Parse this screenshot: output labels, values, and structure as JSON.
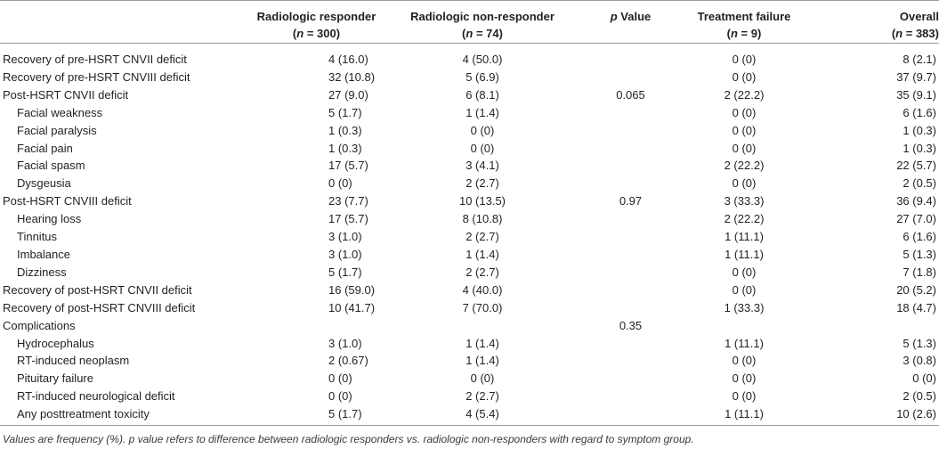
{
  "headers": {
    "col1": {
      "title": "Radiologic responder",
      "n": "300"
    },
    "col2": {
      "title": "Radiologic non-responder",
      "n": "74"
    },
    "col3": {
      "p": "p",
      "rest": " Value"
    },
    "col4": {
      "title": "Treatment failure",
      "n": "9"
    },
    "col5": {
      "title": "Overall",
      "n": "383"
    }
  },
  "rows": [
    {
      "label": "Recovery of pre-HSRT CNVII deficit",
      "indent": false,
      "c1": "4 (16.0)",
      "c2": "4 (50.0)",
      "p": "",
      "c4": "0 (0)",
      "c5": "8 (2.1)"
    },
    {
      "label": "Recovery of pre-HSRT CNVIII deficit",
      "indent": false,
      "c1": "32 (10.8)",
      "c2": "5 (6.9)",
      "p": "",
      "c4": "0 (0)",
      "c5": "37 (9.7)"
    },
    {
      "label": "Post-HSRT CNVII deficit",
      "indent": false,
      "c1": "27 (9.0)",
      "c2": "6 (8.1)",
      "p": "0.065",
      "c4": "2 (22.2)",
      "c5": "35 (9.1)"
    },
    {
      "label": "Facial weakness",
      "indent": true,
      "c1": "5 (1.7)",
      "c2": "1 (1.4)",
      "p": "",
      "c4": "0 (0)",
      "c5": "6 (1.6)"
    },
    {
      "label": "Facial paralysis",
      "indent": true,
      "c1": "1 (0.3)",
      "c2": "0 (0)",
      "p": "",
      "c4": "0 (0)",
      "c5": "1 (0.3)"
    },
    {
      "label": "Facial pain",
      "indent": true,
      "c1": "1 (0.3)",
      "c2": "0 (0)",
      "p": "",
      "c4": "0 (0)",
      "c5": "1 (0.3)"
    },
    {
      "label": "Facial spasm",
      "indent": true,
      "c1": "17 (5.7)",
      "c2": "3 (4.1)",
      "p": "",
      "c4": "2 (22.2)",
      "c5": "22 (5.7)"
    },
    {
      "label": "Dysgeusia",
      "indent": true,
      "c1": "0 (0)",
      "c2": "2 (2.7)",
      "p": "",
      "c4": "0 (0)",
      "c5": "2 (0.5)"
    },
    {
      "label": "Post-HSRT CNVIII deficit",
      "indent": false,
      "c1": "23 (7.7)",
      "c2": "10 (13.5)",
      "p": "0.97",
      "c4": "3 (33.3)",
      "c5": "36 (9.4)"
    },
    {
      "label": "Hearing loss",
      "indent": true,
      "c1": "17 (5.7)",
      "c2": "8 (10.8)",
      "p": "",
      "c4": "2 (22.2)",
      "c5": "27 (7.0)"
    },
    {
      "label": "Tinnitus",
      "indent": true,
      "c1": "3 (1.0)",
      "c2": "2 (2.7)",
      "p": "",
      "c4": "1 (11.1)",
      "c5": "6 (1.6)"
    },
    {
      "label": "Imbalance",
      "indent": true,
      "c1": "3 (1.0)",
      "c2": "1 (1.4)",
      "p": "",
      "c4": "1 (11.1)",
      "c5": "5 (1.3)"
    },
    {
      "label": "Dizziness",
      "indent": true,
      "c1": "5 (1.7)",
      "c2": "2 (2.7)",
      "p": "",
      "c4": "0 (0)",
      "c5": "7 (1.8)"
    },
    {
      "label": "Recovery of post-HSRT CNVII deficit",
      "indent": false,
      "c1": "16 (59.0)",
      "c2": "4 (40.0)",
      "p": "",
      "c4": "0 (0)",
      "c5": "20 (5.2)"
    },
    {
      "label": "Recovery of post-HSRT CNVIII deficit",
      "indent": false,
      "c1": "10 (41.7)",
      "c2": "7 (70.0)",
      "p": "",
      "c4": "1 (33.3)",
      "c5": "18 (4.7)"
    },
    {
      "label": "Complications",
      "indent": false,
      "c1": "",
      "c2": "",
      "p": "0.35",
      "c4": "",
      "c5": ""
    },
    {
      "label": "Hydrocephalus",
      "indent": true,
      "c1": "3 (1.0)",
      "c2": "1 (1.4)",
      "p": "",
      "c4": "1 (11.1)",
      "c5": "5 (1.3)"
    },
    {
      "label": "RT-induced neoplasm",
      "indent": true,
      "c1": "2 (0.67)",
      "c2": "1 (1.4)",
      "p": "",
      "c4": "0 (0)",
      "c5": "3 (0.8)"
    },
    {
      "label": "Pituitary failure",
      "indent": true,
      "c1": "0 (0)",
      "c2": "0 (0)",
      "p": "",
      "c4": "0 (0)",
      "c5": "0 (0)"
    },
    {
      "label": "RT-induced neurological deficit",
      "indent": true,
      "c1": "0 (0)",
      "c2": "2 (2.7)",
      "p": "",
      "c4": "0 (0)",
      "c5": "2 (0.5)"
    },
    {
      "label": "Any posttreatment toxicity",
      "indent": true,
      "c1": "5 (1.7)",
      "c2": "4 (5.4)",
      "p": "",
      "c4": "1 (11.1)",
      "c5": "10 (2.6)"
    }
  ],
  "footnote": "Values are frequency (%). p value refers to difference between radiologic responders vs. radiologic non-responders with regard to symptom group."
}
